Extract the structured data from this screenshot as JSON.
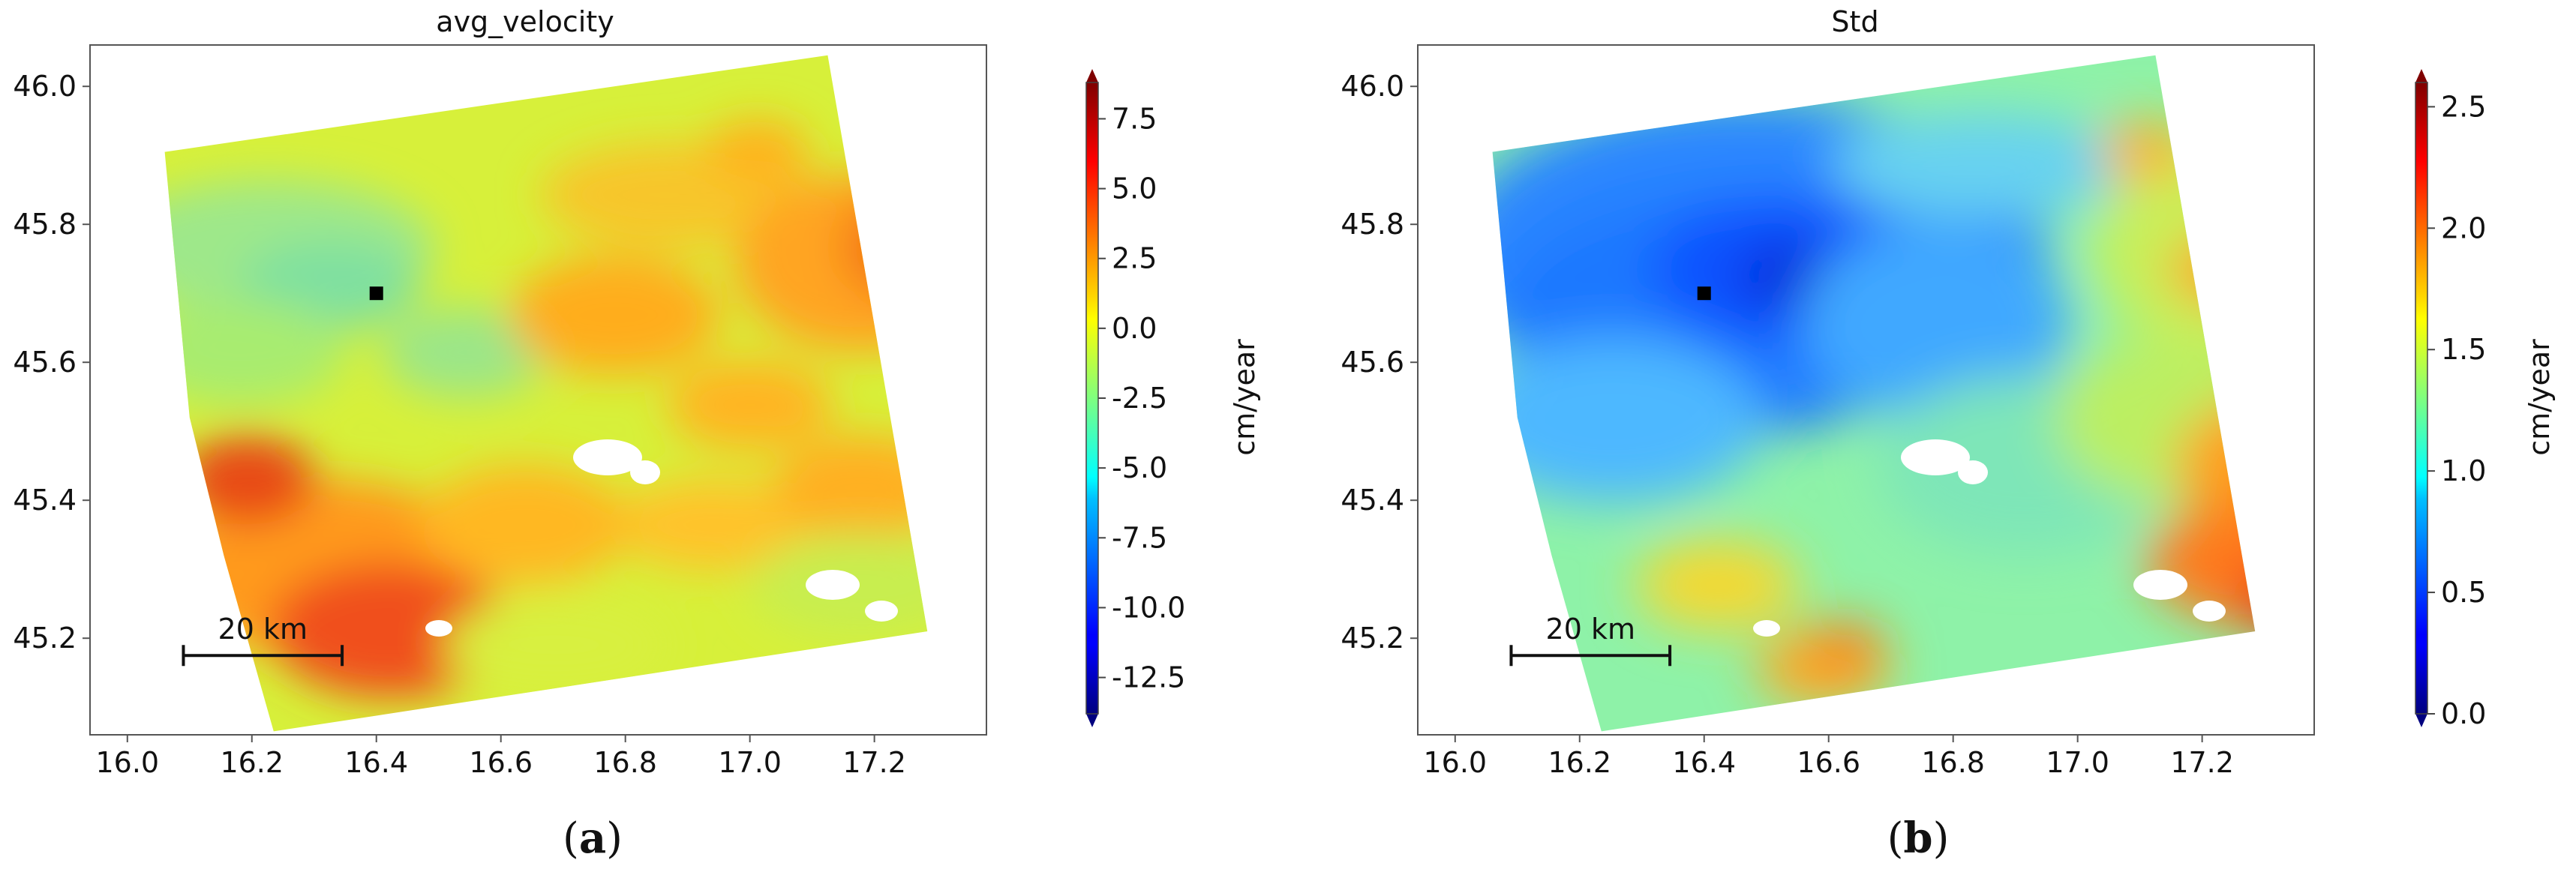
{
  "chart_data": [
    {
      "type": "heatmap",
      "title": "avg_velocity",
      "caption_letter": "a",
      "xlabel": "",
      "ylabel": "",
      "xlim": [
        15.94,
        17.38
      ],
      "ylim": [
        45.06,
        46.06
      ],
      "xticks": [
        16.0,
        16.2,
        16.4,
        16.6,
        16.8,
        17.0,
        17.2
      ],
      "yticks": [
        45.2,
        45.4,
        45.6,
        45.8,
        46.0
      ],
      "colorbar": {
        "label": "cm/year",
        "colormap": "jet",
        "range": [
          -13.8,
          8.8
        ],
        "ticks": [
          7.5,
          5.0,
          2.5,
          0.0,
          -2.5,
          -5.0,
          -7.5,
          -10.0,
          -12.5
        ],
        "extend": "both"
      },
      "scalebar": {
        "label": "20 km",
        "x_start": 16.09,
        "x_end": 16.345,
        "y": 45.175
      },
      "marker": {
        "lon": 16.4,
        "lat": 45.7,
        "color": "#000000"
      },
      "footprint": [
        [
          16.06,
          45.905
        ],
        [
          17.125,
          46.045
        ],
        [
          17.285,
          45.21
        ],
        [
          16.235,
          45.065
        ],
        [
          16.155,
          45.32
        ],
        [
          16.1,
          45.52
        ]
      ],
      "field_value_range": [
        -6.0,
        6.5
      ]
    },
    {
      "type": "heatmap",
      "title": "Std",
      "caption_letter": "b",
      "xlabel": "",
      "ylabel": "",
      "xlim": [
        15.94,
        17.38
      ],
      "ylim": [
        45.06,
        46.06
      ],
      "xticks": [
        16.0,
        16.2,
        16.4,
        16.6,
        16.8,
        17.0,
        17.2
      ],
      "yticks": [
        45.2,
        45.4,
        45.6,
        45.8,
        46.0
      ],
      "colorbar": {
        "label": "cm/year",
        "colormap": "jet",
        "range": [
          0.0,
          2.6
        ],
        "ticks": [
          2.5,
          2.0,
          1.5,
          1.0,
          0.5,
          0.0
        ],
        "extend": "both"
      },
      "scalebar": {
        "label": "20 km",
        "x_start": 16.09,
        "x_end": 16.345,
        "y": 45.175
      },
      "marker": {
        "lon": 16.4,
        "lat": 45.7,
        "color": "#000000"
      },
      "footprint": [
        [
          16.06,
          45.905
        ],
        [
          17.125,
          46.045
        ],
        [
          17.285,
          45.21
        ],
        [
          16.235,
          45.065
        ],
        [
          16.155,
          45.32
        ],
        [
          16.1,
          45.52
        ]
      ],
      "field_value_range": [
        0.2,
        2.3
      ]
    }
  ]
}
